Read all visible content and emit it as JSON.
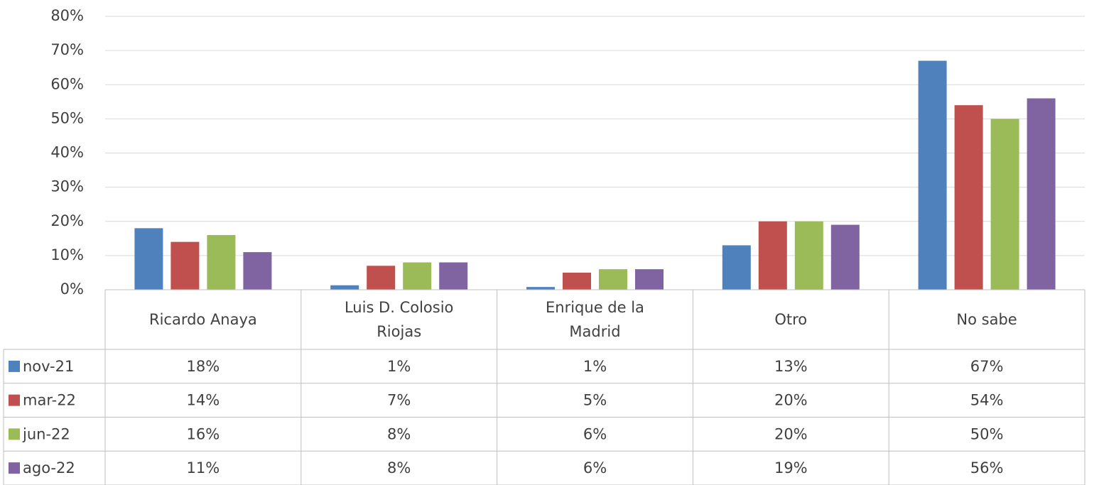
{
  "chart_data": {
    "type": "bar",
    "categories": [
      "Ricardo Anaya",
      "Luis D. Colosio Riojas",
      "Enrique de la Madrid",
      "Otro",
      "No sabe"
    ],
    "series": [
      {
        "name": "nov-21",
        "color": "#4f81bd",
        "values": [
          18,
          1.3,
          0.8,
          13,
          67
        ],
        "value_labels": [
          "18%",
          "1%",
          "1%",
          "13%",
          "67%"
        ]
      },
      {
        "name": "mar-22",
        "color": "#c0504d",
        "values": [
          14,
          7,
          5,
          20,
          54
        ],
        "value_labels": [
          "14%",
          "7%",
          "5%",
          "20%",
          "54%"
        ]
      },
      {
        "name": "jun-22",
        "color": "#9bbb59",
        "values": [
          16,
          8,
          6,
          20,
          50
        ],
        "value_labels": [
          "16%",
          "8%",
          "6%",
          "20%",
          "50%"
        ]
      },
      {
        "name": "ago-22",
        "color": "#8064a2",
        "values": [
          11,
          8,
          6,
          19,
          56
        ],
        "value_labels": [
          "11%",
          "8%",
          "6%",
          "19%",
          "56%"
        ]
      }
    ],
    "ylim": [
      0,
      80
    ],
    "yticks": [
      {
        "value": 0,
        "label": "0%"
      },
      {
        "value": 10,
        "label": "10%"
      },
      {
        "value": 20,
        "label": "20%"
      },
      {
        "value": 30,
        "label": "30%"
      },
      {
        "value": 40,
        "label": "40%"
      },
      {
        "value": 50,
        "label": "50%"
      },
      {
        "value": 60,
        "label": "60%"
      },
      {
        "value": 70,
        "label": "70%"
      },
      {
        "value": 80,
        "label": "80%"
      }
    ],
    "grid": true,
    "data_table": true
  }
}
